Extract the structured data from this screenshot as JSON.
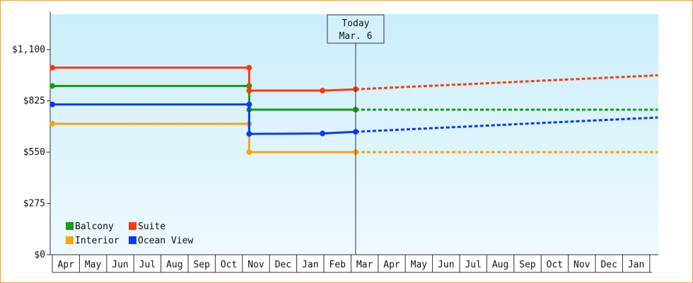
{
  "chart_data": {
    "type": "line",
    "title": "",
    "xlabel": "",
    "ylabel": "",
    "y_ticks": [
      "$0",
      "$275",
      "$550",
      "$825",
      "$1,100"
    ],
    "y_tick_values": [
      0,
      275,
      550,
      825,
      1100
    ],
    "ylim": [
      0,
      1290
    ],
    "months": [
      "Apr",
      "May",
      "Jun",
      "Jul",
      "Aug",
      "Sep",
      "Oct",
      "Nov",
      "Dec",
      "Jan",
      "Feb",
      "Mar",
      "Apr",
      "May",
      "Jun",
      "Jul",
      "Aug",
      "Sep",
      "Oct",
      "Nov",
      "Dec",
      "Jan"
    ],
    "x_range_months": [
      0,
      22.3
    ],
    "today": {
      "line1": "Today",
      "line2": "Mar. 6",
      "x": 11.17
    },
    "grid": false,
    "legend_position": "bottom-left",
    "series": [
      {
        "name": "Balcony",
        "color": "#11a011",
        "points": [
          [
            0,
            905
          ],
          [
            7.25,
            905
          ],
          [
            7.25,
            778
          ],
          [
            11.17,
            778
          ]
        ],
        "forecast": [
          [
            11.17,
            778
          ],
          [
            22.3,
            778
          ]
        ]
      },
      {
        "name": "Suite",
        "color": "#ff3a0a",
        "points": [
          [
            0,
            1003
          ],
          [
            7.25,
            1003
          ],
          [
            7.25,
            880
          ],
          [
            9.95,
            880
          ],
          [
            11.17,
            887
          ]
        ],
        "forecast": [
          [
            11.17,
            887
          ],
          [
            22.3,
            962
          ]
        ]
      },
      {
        "name": "Interior",
        "color": "#f5a412",
        "points": [
          [
            0,
            702
          ],
          [
            7.25,
            702
          ],
          [
            7.25,
            550
          ],
          [
            11.17,
            550
          ]
        ],
        "forecast": [
          [
            11.17,
            550
          ],
          [
            22.3,
            550
          ]
        ]
      },
      {
        "name": "Ocean View",
        "color": "#0a3af5",
        "points": [
          [
            0,
            806
          ],
          [
            7.25,
            806
          ],
          [
            7.25,
            648
          ],
          [
            9.95,
            650
          ],
          [
            11.17,
            659
          ]
        ],
        "forecast": [
          [
            11.17,
            659
          ],
          [
            22.3,
            736
          ]
        ]
      }
    ]
  }
}
